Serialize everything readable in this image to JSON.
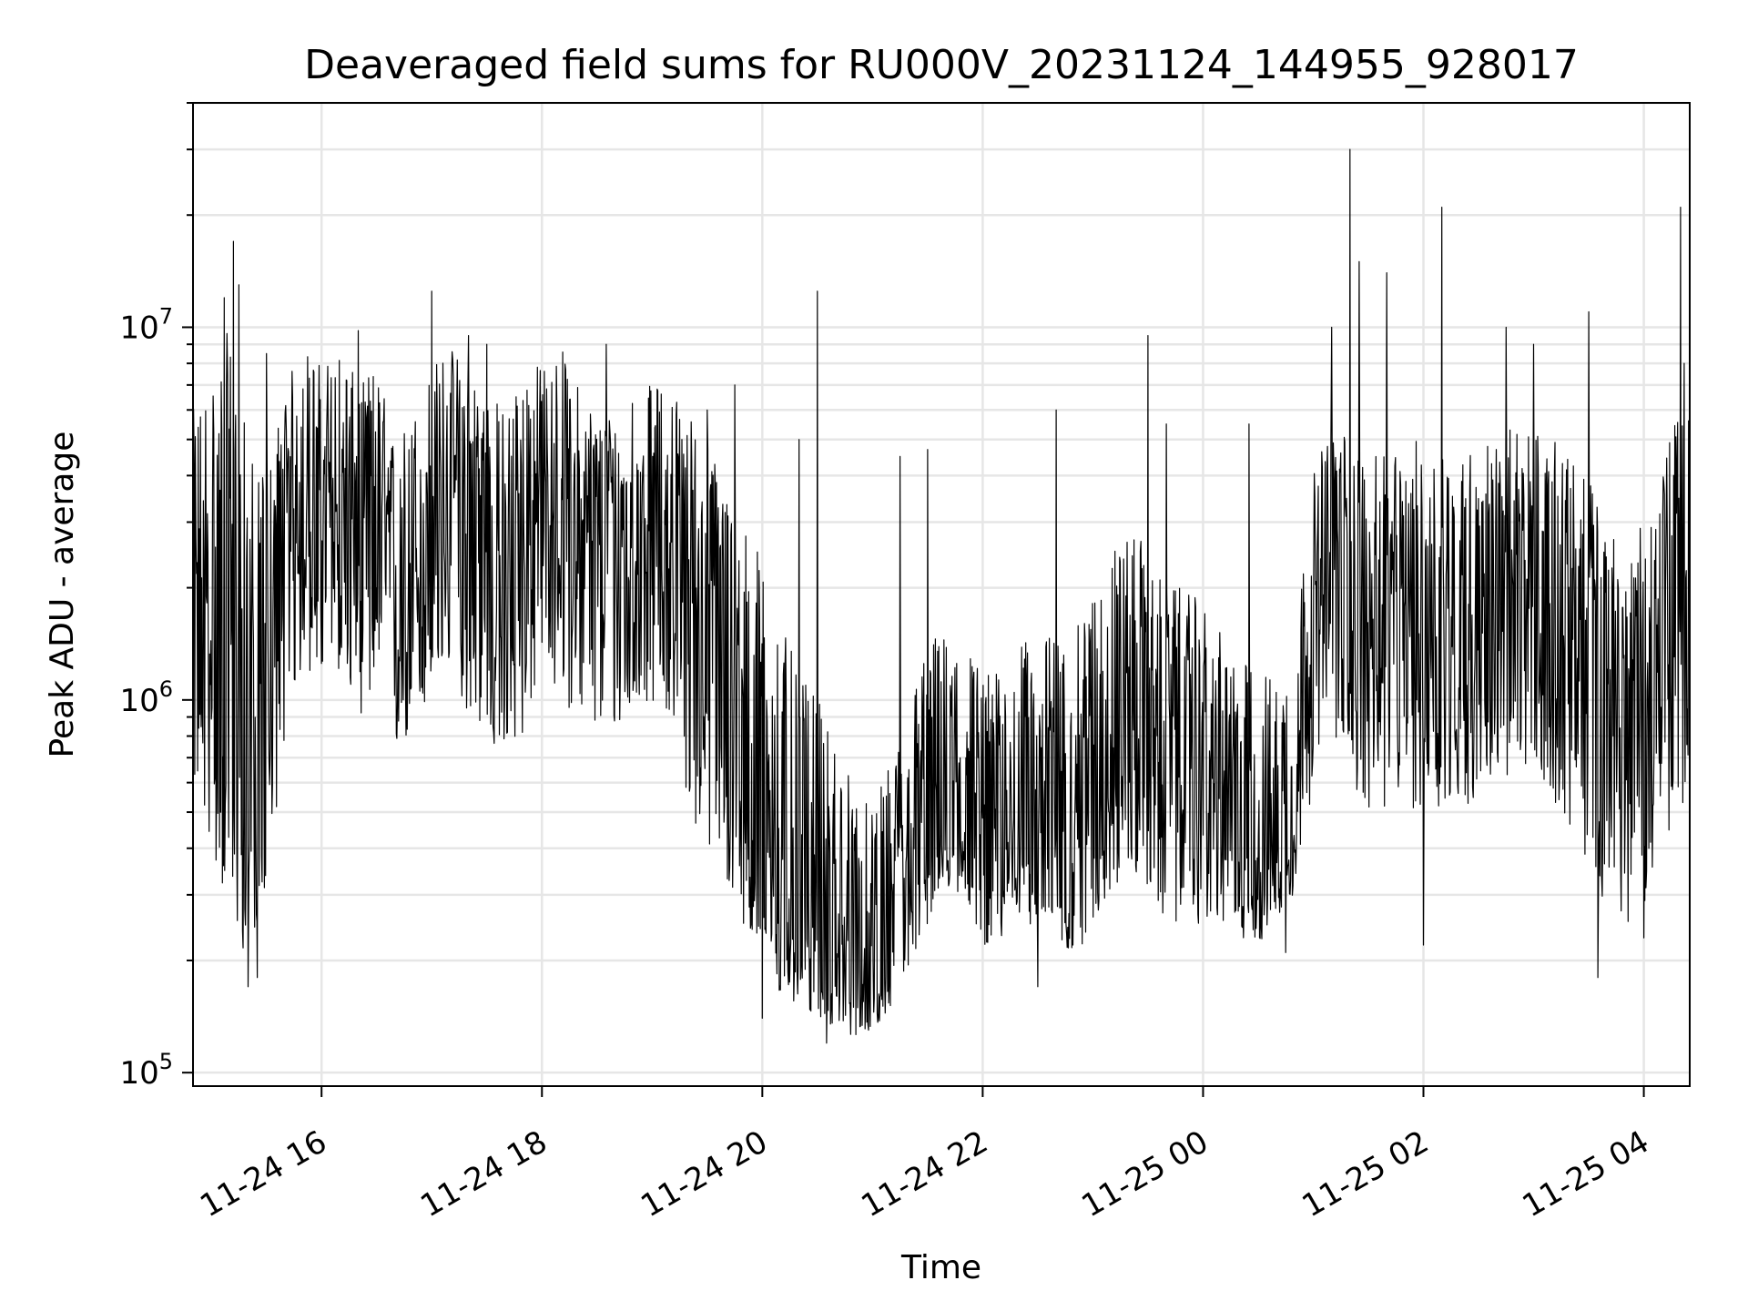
{
  "chart_data": {
    "type": "line",
    "title": "Deaveraged field sums for RU000V_20231124_144955_928017",
    "xlabel": "Time",
    "ylabel": "Peak ADU - average",
    "yscale": "log",
    "xlim": [
      "2023-11-24 14:50",
      "2023-11-25 04:25"
    ],
    "ylim": [
      92000,
      40000000
    ],
    "grid": true,
    "x_ticks": [
      "11-24 16",
      "11-24 18",
      "11-24 20",
      "11-24 22",
      "11-25 00",
      "11-25 02",
      "11-25 04"
    ],
    "y_ticks": [
      {
        "base": "10",
        "exp": "5",
        "value": 100000
      },
      {
        "base": "10",
        "exp": "6",
        "value": 1000000
      },
      {
        "base": "10",
        "exp": "7",
        "value": 10000000
      }
    ],
    "series": [
      {
        "color": "#000000",
        "note": "approximate envelope of a dense noisy trace (median level with typical low/high excursions)",
        "x": [
          "2023-11-24 14:50",
          "2023-11-24 15:00",
          "2023-11-24 15:10",
          "2023-11-24 15:20",
          "2023-11-24 15:30",
          "2023-11-24 15:40",
          "2023-11-24 15:50",
          "2023-11-24 16:00",
          "2023-11-24 16:10",
          "2023-11-24 16:20",
          "2023-11-24 16:30",
          "2023-11-24 16:40",
          "2023-11-24 16:50",
          "2023-11-24 17:00",
          "2023-11-24 17:10",
          "2023-11-24 17:20",
          "2023-11-24 17:30",
          "2023-11-24 17:40",
          "2023-11-24 17:50",
          "2023-11-24 18:00",
          "2023-11-24 18:10",
          "2023-11-24 18:20",
          "2023-11-24 18:30",
          "2023-11-24 18:40",
          "2023-11-24 18:50",
          "2023-11-24 19:00",
          "2023-11-24 19:10",
          "2023-11-24 19:20",
          "2023-11-24 19:30",
          "2023-11-24 19:40",
          "2023-11-24 19:50",
          "2023-11-24 20:00",
          "2023-11-24 20:10",
          "2023-11-24 20:20",
          "2023-11-24 20:30",
          "2023-11-24 20:40",
          "2023-11-24 20:50",
          "2023-11-24 21:00",
          "2023-11-24 21:10",
          "2023-11-24 21:20",
          "2023-11-24 21:30",
          "2023-11-24 21:40",
          "2023-11-24 21:50",
          "2023-11-24 22:00",
          "2023-11-24 22:10",
          "2023-11-24 22:20",
          "2023-11-24 22:30",
          "2023-11-24 22:40",
          "2023-11-24 22:50",
          "2023-11-24 23:00",
          "2023-11-24 23:10",
          "2023-11-24 23:20",
          "2023-11-24 23:30",
          "2023-11-24 23:40",
          "2023-11-24 23:50",
          "2023-11-25 00:00",
          "2023-11-25 00:10",
          "2023-11-25 00:20",
          "2023-11-25 00:30",
          "2023-11-25 00:40",
          "2023-11-25 00:50",
          "2023-11-25 01:00",
          "2023-11-25 01:10",
          "2023-11-25 01:20",
          "2023-11-25 01:30",
          "2023-11-25 01:40",
          "2023-11-25 01:50",
          "2023-11-25 02:00",
          "2023-11-25 02:10",
          "2023-11-25 02:20",
          "2023-11-25 02:30",
          "2023-11-25 02:40",
          "2023-11-25 02:50",
          "2023-11-25 03:00",
          "2023-11-25 03:10",
          "2023-11-25 03:20",
          "2023-11-25 03:30",
          "2023-11-25 03:40",
          "2023-11-25 03:50",
          "2023-11-25 04:00",
          "2023-11-25 04:10",
          "2023-11-25 04:20"
        ],
        "median": [
          1500000,
          1400000,
          900000,
          700000,
          1000000,
          2500000,
          3500000,
          3000000,
          3200000,
          2800000,
          3500000,
          1600000,
          2000000,
          2500000,
          3200000,
          3000000,
          2500000,
          2000000,
          2800000,
          3000000,
          3200000,
          2800000,
          2500000,
          2500000,
          2600000,
          2800000,
          2700000,
          2200000,
          1500000,
          1000000,
          700000,
          500000,
          350000,
          300000,
          250000,
          220000,
          170000,
          170000,
          200000,
          300000,
          450000,
          500000,
          550000,
          400000,
          420000,
          500000,
          500000,
          550000,
          500000,
          700000,
          800000,
          900000,
          800000,
          700000,
          700000,
          600000,
          500000,
          450000,
          400000,
          400000,
          500000,
          1500000,
          2000000,
          1800000,
          1500000,
          1500000,
          1600000,
          1700000,
          1700000,
          1500000,
          1600000,
          1700000,
          1800000,
          1800000,
          1700000,
          1500000,
          1300000,
          1000000,
          900000,
          1000000,
          1500000,
          2000000
        ],
        "low": [
          600000,
          400000,
          250000,
          200000,
          300000,
          800000,
          1200000,
          1100000,
          1200000,
          900000,
          1000000,
          700000,
          800000,
          1000000,
          1200000,
          900000,
          800000,
          600000,
          800000,
          1200000,
          1000000,
          900000,
          800000,
          800000,
          900000,
          1000000,
          900000,
          500000,
          400000,
          300000,
          250000,
          180000,
          150000,
          150000,
          140000,
          130000,
          125000,
          130000,
          150000,
          180000,
          250000,
          300000,
          300000,
          220000,
          220000,
          250000,
          250000,
          220000,
          200000,
          250000,
          300000,
          350000,
          300000,
          250000,
          250000,
          250000,
          250000,
          230000,
          220000,
          250000,
          300000,
          600000,
          700000,
          600000,
          500000,
          500000,
          550000,
          450000,
          500000,
          500000,
          550000,
          600000,
          600000,
          600000,
          550000,
          450000,
          350000,
          280000,
          250000,
          280000,
          400000,
          500000
        ],
        "high": [
          6000000,
          8000000,
          10000000,
          5000000,
          4000000,
          7000000,
          9000000,
          8000000,
          9000000,
          7000000,
          8000000,
          5000000,
          6000000,
          8000000,
          9000000,
          8000000,
          7000000,
          6000000,
          8000000,
          8000000,
          9000000,
          7000000,
          6000000,
          6000000,
          7000000,
          7000000,
          7000000,
          6000000,
          5000000,
          4000000,
          3000000,
          2500000,
          1600000,
          1200000,
          1000000,
          800000,
          600000,
          500000,
          700000,
          1000000,
          1500000,
          1500000,
          1500000,
          1200000,
          1200000,
          1400000,
          1500000,
          1500000,
          1500000,
          2000000,
          2500000,
          3000000,
          2500000,
          2000000,
          2000000,
          1800000,
          1500000,
          1300000,
          1200000,
          1200000,
          1500000,
          4000000,
          6000000,
          5000000,
          4500000,
          4500000,
          5000000,
          5000000,
          5000000,
          4500000,
          5000000,
          5000000,
          5500000,
          5500000,
          5000000,
          4500000,
          4000000,
          3000000,
          2500000,
          3000000,
          4500000,
          6000000
        ],
        "spikes": [
          {
            "x": "2023-11-24 15:07",
            "y": 12000000
          },
          {
            "x": "2023-11-24 15:12",
            "y": 17000000
          },
          {
            "x": "2023-11-24 15:15",
            "y": 13000000
          },
          {
            "x": "2023-11-24 15:20",
            "y": 170000
          },
          {
            "x": "2023-11-24 15:25",
            "y": 180000
          },
          {
            "x": "2023-11-24 15:30",
            "y": 8500000
          },
          {
            "x": "2023-11-24 17:00",
            "y": 12500000
          },
          {
            "x": "2023-11-24 16:20",
            "y": 9800000
          },
          {
            "x": "2023-11-24 17:20",
            "y": 9500000
          },
          {
            "x": "2023-11-24 17:30",
            "y": 9000000
          },
          {
            "x": "2023-11-24 18:35",
            "y": 9000000
          },
          {
            "x": "2023-11-24 19:30",
            "y": 6000000
          },
          {
            "x": "2023-11-24 19:45",
            "y": 7000000
          },
          {
            "x": "2023-11-24 20:20",
            "y": 5000000
          },
          {
            "x": "2023-11-24 20:30",
            "y": 12500000
          },
          {
            "x": "2023-11-24 20:00",
            "y": 140000
          },
          {
            "x": "2023-11-24 20:35",
            "y": 120000
          },
          {
            "x": "2023-11-24 21:15",
            "y": 4500000
          },
          {
            "x": "2023-11-24 21:30",
            "y": 4700000
          },
          {
            "x": "2023-11-24 22:40",
            "y": 6000000
          },
          {
            "x": "2023-11-24 22:30",
            "y": 170000
          },
          {
            "x": "2023-11-24 23:30",
            "y": 9500000
          },
          {
            "x": "2023-11-24 23:40",
            "y": 5500000
          },
          {
            "x": "2023-11-25 00:25",
            "y": 5500000
          },
          {
            "x": "2023-11-25 00:45",
            "y": 210000
          },
          {
            "x": "2023-11-25 01:20",
            "y": 30000000
          },
          {
            "x": "2023-11-25 01:25",
            "y": 15000000
          },
          {
            "x": "2023-11-25 01:40",
            "y": 14000000
          },
          {
            "x": "2023-11-25 01:10",
            "y": 10000000
          },
          {
            "x": "2023-11-25 02:10",
            "y": 21000000
          },
          {
            "x": "2023-11-25 02:00",
            "y": 220000
          },
          {
            "x": "2023-11-25 02:45",
            "y": 10000000
          },
          {
            "x": "2023-11-25 03:00",
            "y": 9000000
          },
          {
            "x": "2023-11-25 03:30",
            "y": 11000000
          },
          {
            "x": "2023-11-25 03:35",
            "y": 180000
          },
          {
            "x": "2023-11-25 04:20",
            "y": 21000000
          },
          {
            "x": "2023-11-25 04:00",
            "y": 230000
          },
          {
            "x": "2023-11-25 04:22",
            "y": 8000000
          }
        ]
      }
    ]
  }
}
